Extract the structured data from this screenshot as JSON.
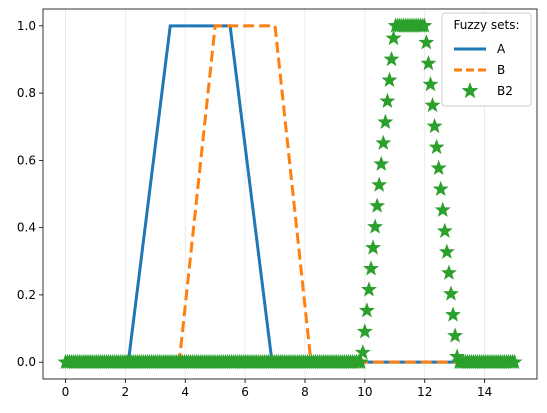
{
  "chart_data": {
    "type": "line",
    "xlim": [
      -0.75,
      15.75
    ],
    "ylim": [
      -0.05,
      1.05
    ],
    "x_ticks": [
      0,
      2,
      4,
      6,
      8,
      10,
      12,
      14
    ],
    "x_tick_labels": [
      "0",
      "2",
      "4",
      "6",
      "8",
      "10",
      "12",
      "14"
    ],
    "y_ticks": [
      0.0,
      0.2,
      0.4,
      0.6,
      0.8,
      1.0
    ],
    "y_tick_labels": [
      "0.0",
      "0.2",
      "0.4",
      "0.6",
      "0.8",
      "1.0"
    ],
    "grid": "vertical lines at x ticks",
    "legend": {
      "title": "Fuzzy sets:",
      "placement": "top-right"
    },
    "series": [
      {
        "name": "A",
        "style": "solid",
        "color": "#1f77b4",
        "x": [
          0,
          2.1,
          3.5,
          5.5,
          6.9,
          15
        ],
        "y": [
          0,
          0,
          1,
          1,
          0,
          0
        ]
      },
      {
        "name": "B",
        "style": "dashed",
        "color": "#ff7f0e",
        "x": [
          0,
          3.8,
          5.0,
          7.0,
          8.2,
          15
        ],
        "y": [
          0,
          0,
          1,
          1,
          0,
          0
        ]
      },
      {
        "name": "B2",
        "style": "star markers",
        "color": "#2ca02c",
        "x": [
          0,
          9.9,
          11.0,
          12.0,
          13.1,
          15
        ],
        "y": [
          0,
          0,
          1,
          1,
          0,
          0
        ]
      }
    ]
  }
}
